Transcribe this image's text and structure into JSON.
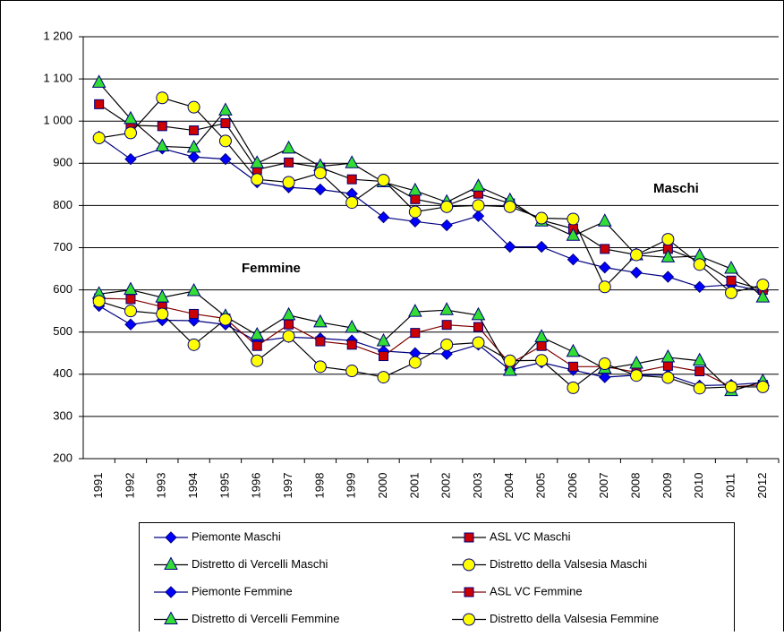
{
  "chart_data": {
    "type": "line",
    "categories": [
      "1991",
      "1992",
      "1993",
      "1994",
      "1995",
      "1996",
      "1997",
      "1998",
      "1999",
      "2000",
      "2001",
      "2002",
      "2003",
      "2004",
      "2005",
      "2006",
      "2007",
      "2008",
      "2009",
      "2010",
      "2011",
      "2012"
    ],
    "series": [
      {
        "name": "Piemonte Maschi",
        "color": "#0000ff",
        "line_color": "#000080",
        "marker": "diamond",
        "values": [
          963,
          910,
          935,
          915,
          910,
          855,
          843,
          838,
          828,
          772,
          762,
          753,
          775,
          702,
          702,
          672,
          653,
          641,
          631,
          607,
          612,
          597
        ]
      },
      {
        "name": "ASL VC Maschi",
        "color": "#cc0000",
        "line_color": "#000000",
        "marker": "square",
        "values": [
          1040,
          990,
          988,
          978,
          995,
          885,
          902,
          890,
          862,
          857,
          815,
          800,
          828,
          805,
          765,
          745,
          697,
          683,
          697,
          668,
          622,
          600
        ]
      },
      {
        "name": "Distretto di Vercelli Maschi",
        "color": "#33dd33",
        "line_color": "#000000",
        "marker": "triangle",
        "values": [
          1091,
          1005,
          940,
          937,
          1025,
          900,
          935,
          893,
          900,
          855,
          835,
          808,
          845,
          812,
          762,
          728,
          762,
          682,
          677,
          680,
          650,
          582
        ]
      },
      {
        "name": "Distretto della Valsesia Maschi",
        "color": "#ffff00",
        "line_color": "#000000",
        "marker": "circle",
        "values": [
          960,
          972,
          1055,
          1033,
          953,
          862,
          855,
          877,
          807,
          860,
          785,
          797,
          800,
          797,
          770,
          768,
          607,
          683,
          720,
          660,
          593,
          612
        ]
      },
      {
        "name": "Piemonte Femmine",
        "color": "#0000ff",
        "line_color": "#000080",
        "marker": "diamond",
        "values": [
          562,
          518,
          528,
          527,
          518,
          478,
          488,
          485,
          480,
          455,
          450,
          448,
          470,
          410,
          428,
          410,
          393,
          398,
          398,
          373,
          375,
          380
        ]
      },
      {
        "name": "ASL VC Femmine",
        "color": "#cc0000",
        "line_color": "#800000",
        "marker": "square",
        "values": [
          580,
          578,
          560,
          543,
          532,
          467,
          518,
          478,
          470,
          443,
          498,
          517,
          512,
          425,
          467,
          418,
          418,
          405,
          420,
          407,
          370,
          375
        ]
      },
      {
        "name": "Distretto di Vercelli Femmine",
        "color": "#33dd33",
        "line_color": "#000000",
        "marker": "triangle",
        "values": [
          590,
          600,
          582,
          597,
          537,
          493,
          540,
          523,
          510,
          478,
          548,
          552,
          540,
          408,
          488,
          453,
          413,
          425,
          440,
          432,
          360,
          383
        ]
      },
      {
        "name": "Distretto della Valsesia Femmine",
        "color": "#ffff00",
        "line_color": "#000000",
        "marker": "circle",
        "values": [
          573,
          550,
          543,
          470,
          530,
          432,
          490,
          418,
          408,
          393,
          428,
          470,
          475,
          432,
          433,
          368,
          425,
          397,
          392,
          367,
          370,
          370
        ]
      }
    ],
    "ylim": [
      200,
      1200
    ],
    "yticks": [
      200,
      300,
      400,
      500,
      600,
      700,
      800,
      900,
      {
        "value": 1000,
        "label": "1 000"
      },
      {
        "value": 1100,
        "label": "1 100"
      },
      {
        "value": 1200,
        "label": "1 200"
      }
    ],
    "grid": true,
    "annotations": [
      {
        "text": "Maschi"
      },
      {
        "text": "Femmine"
      }
    ],
    "legend": "bottom"
  }
}
